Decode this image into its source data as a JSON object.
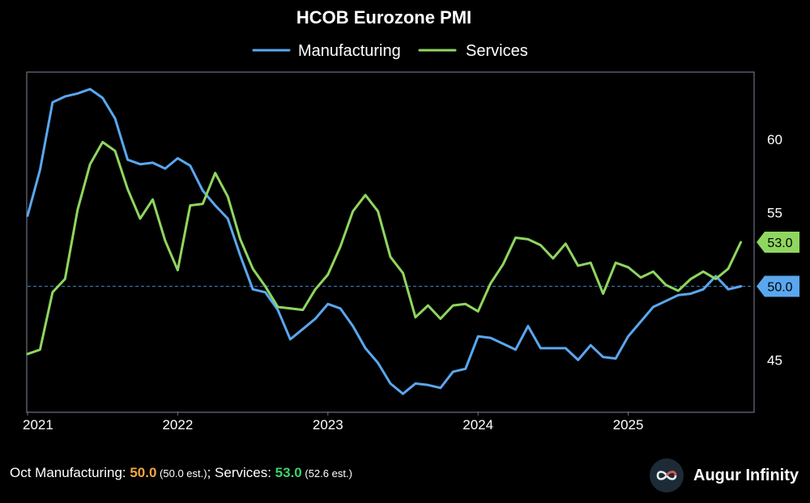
{
  "colors": {
    "manufacturing": "#5aa7f0",
    "services": "#8fd65f",
    "manufacturing_value": "#f5a742",
    "services_value": "#3fcf6a",
    "frame": "#6b7280",
    "reference_line": "#3a6ea8",
    "background": "#000000"
  },
  "chart_data": {
    "type": "line",
    "title": "HCOB Eurozone PMI",
    "legend_position": "top-center",
    "xlabel": "",
    "ylabel": "",
    "x_start": 2021.0,
    "x_step": 0.08333,
    "xlim": [
      2021.0,
      2025.833
    ],
    "ylim": [
      41.5,
      64.5
    ],
    "y_ticks": [
      45,
      50,
      55,
      60
    ],
    "y_tick_labels": [
      "45",
      "",
      "55",
      "60"
    ],
    "x_ticks": [
      2021,
      2022,
      2023,
      2024,
      2025
    ],
    "x_tick_labels": [
      "2021",
      "2022",
      "2023",
      "2024",
      "2025"
    ],
    "reference_line": 50,
    "series": [
      {
        "name": "Manufacturing",
        "color_key": "manufacturing",
        "last_label": "50.0",
        "values": [
          54.8,
          57.9,
          62.5,
          62.9,
          63.1,
          63.4,
          62.8,
          61.4,
          58.6,
          58.3,
          58.4,
          58.0,
          58.7,
          58.2,
          56.5,
          55.5,
          54.6,
          52.1,
          49.8,
          49.6,
          48.4,
          46.4,
          47.1,
          47.8,
          48.8,
          48.5,
          47.3,
          45.8,
          44.8,
          43.4,
          42.7,
          43.4,
          43.3,
          43.1,
          44.2,
          44.4,
          46.6,
          46.5,
          46.1,
          45.7,
          47.3,
          45.8,
          45.8,
          45.8,
          45.0,
          46.0,
          45.2,
          45.1,
          46.6,
          47.6,
          48.6,
          49.0,
          49.4,
          49.5,
          49.8,
          50.7,
          49.8,
          50.0
        ]
      },
      {
        "name": "Services",
        "color_key": "services",
        "last_label": "53.0",
        "values": [
          45.4,
          45.7,
          49.6,
          50.5,
          55.2,
          58.3,
          59.8,
          59.2,
          56.6,
          54.6,
          55.9,
          53.1,
          51.1,
          55.5,
          55.6,
          57.7,
          56.1,
          53.2,
          51.2,
          50.0,
          48.6,
          48.5,
          48.4,
          49.8,
          50.8,
          52.7,
          55.1,
          56.2,
          55.1,
          52.0,
          50.9,
          47.9,
          48.7,
          47.8,
          48.7,
          48.8,
          48.3,
          50.2,
          51.5,
          53.3,
          53.2,
          52.8,
          51.9,
          52.9,
          51.4,
          51.6,
          49.5,
          51.6,
          51.3,
          50.6,
          51.0,
          50.1,
          49.7,
          50.5,
          51.0,
          50.5,
          51.2,
          53.0
        ]
      }
    ]
  },
  "footer": {
    "prefix": "Oct Manufacturing: ",
    "manufacturing_value": "50.0",
    "manufacturing_est": " (50.0 est.)",
    "separator": "; Services: ",
    "services_value": "53.0",
    "services_est": " (52.6 est.)"
  },
  "brand": {
    "name": "Augur Infinity",
    "icon": "infinity-logo-icon"
  }
}
